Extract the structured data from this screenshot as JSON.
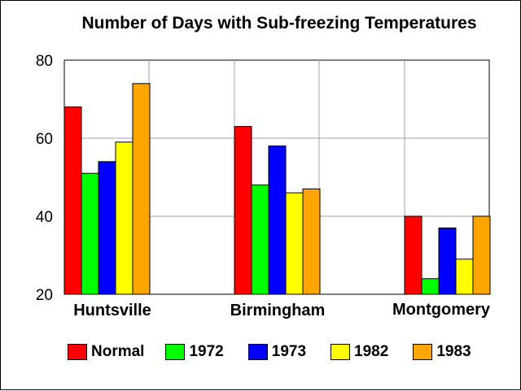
{
  "chart_data": {
    "type": "bar",
    "title": "Number of Days with Sub-freezing Temperatures",
    "categories": [
      "Huntsville",
      "Birmingham",
      "Montgomery"
    ],
    "series": [
      {
        "name": "Normal",
        "color": "#ff0000",
        "values": [
          68,
          63,
          40
        ]
      },
      {
        "name": "1972",
        "color": "#00ff00",
        "values": [
          51,
          48,
          24
        ]
      },
      {
        "name": "1973",
        "color": "#0000ff",
        "values": [
          54,
          58,
          37
        ]
      },
      {
        "name": "1982",
        "color": "#ffff00",
        "values": [
          59,
          46,
          29
        ]
      },
      {
        "name": "1983",
        "color": "#ffa500",
        "values": [
          74,
          47,
          40
        ]
      }
    ],
    "yticks": [
      "20",
      "40",
      "60",
      "80"
    ],
    "ylim": [
      20,
      80
    ],
    "grid": true,
    "legend": "bottom"
  }
}
